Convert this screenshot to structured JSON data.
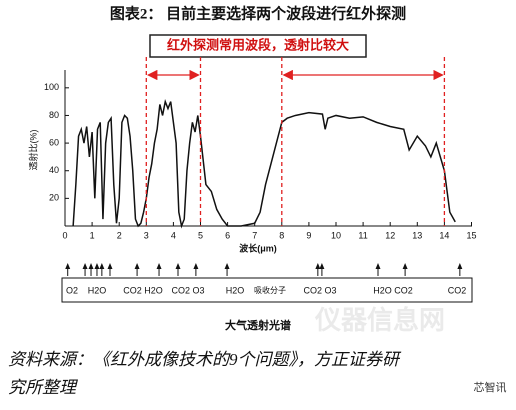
{
  "header": {
    "title": "图表2：  目前主要选择两个波段进行红外探测"
  },
  "chart_data": {
    "type": "line",
    "annotation": "红外探测常用波段，透射比较大",
    "xlabel": "波长(μm)",
    "ylabel": "透射比(%)",
    "xlim": [
      0,
      15
    ],
    "xticks": [
      0,
      1,
      2,
      3,
      4,
      5,
      6,
      7,
      8,
      9,
      10,
      11,
      12,
      13,
      14,
      15
    ],
    "ylim": [
      0,
      110
    ],
    "yticks": [
      20,
      40,
      60,
      80,
      100
    ],
    "bands": [
      [
        3,
        5
      ],
      [
        8,
        14
      ]
    ],
    "band_color": "#e02020",
    "color": "#111111",
    "x": [
      0.3,
      0.4,
      0.5,
      0.6,
      0.7,
      0.8,
      0.9,
      1.0,
      1.1,
      1.2,
      1.3,
      1.4,
      1.5,
      1.6,
      1.7,
      1.8,
      1.9,
      2.0,
      2.1,
      2.2,
      2.3,
      2.4,
      2.5,
      2.6,
      2.7,
      2.8,
      2.9,
      3.0,
      3.1,
      3.2,
      3.3,
      3.4,
      3.5,
      3.6,
      3.7,
      3.8,
      3.9,
      4.0,
      4.1,
      4.2,
      4.3,
      4.4,
      4.5,
      4.6,
      4.7,
      4.8,
      4.9,
      5.0,
      5.2,
      5.4,
      5.6,
      5.8,
      6.0,
      6.5,
      7.0,
      7.2,
      7.4,
      7.6,
      7.8,
      8.0,
      8.2,
      8.5,
      9.0,
      9.5,
      9.6,
      9.7,
      10.0,
      10.5,
      11.0,
      11.5,
      12.0,
      12.5,
      12.7,
      13.0,
      13.3,
      13.5,
      13.7,
      14.0,
      14.2,
      14.4
    ],
    "values": [
      0,
      30,
      65,
      70,
      60,
      72,
      50,
      68,
      20,
      70,
      75,
      5,
      60,
      75,
      78,
      30,
      2,
      20,
      75,
      80,
      78,
      65,
      40,
      5,
      0,
      2,
      10,
      20,
      35,
      45,
      60,
      70,
      88,
      80,
      90,
      85,
      90,
      75,
      60,
      10,
      0,
      5,
      40,
      60,
      75,
      68,
      80,
      65,
      30,
      25,
      12,
      5,
      0,
      0,
      2,
      10,
      30,
      45,
      60,
      75,
      78,
      80,
      82,
      81,
      70,
      78,
      80,
      78,
      79,
      75,
      72,
      70,
      55,
      65,
      58,
      50,
      60,
      40,
      10,
      3
    ],
    "absorption_arrows": [
      0.1,
      0.74,
      0.96,
      1.18,
      1.36,
      1.66,
      2.66,
      3.47,
      4.17,
      4.83,
      5.98,
      9.33,
      9.48,
      11.55,
      12.55,
      14.57
    ],
    "absorption_labels": [
      "O2",
      "H2O",
      "CO2 H2O",
      "CO2 O3",
      "H2O",
      "吸收分子",
      "CO2 O3",
      "H2O CO2",
      "CO2"
    ],
    "caption": "大气透射光谱"
  },
  "footer": {
    "lines": [
      "资料来源：《红外成像技术的9个问题》，方正证券研",
      "究所整理"
    ]
  },
  "watermarks": [
    "仪器信息网",
    "芯智讯"
  ]
}
